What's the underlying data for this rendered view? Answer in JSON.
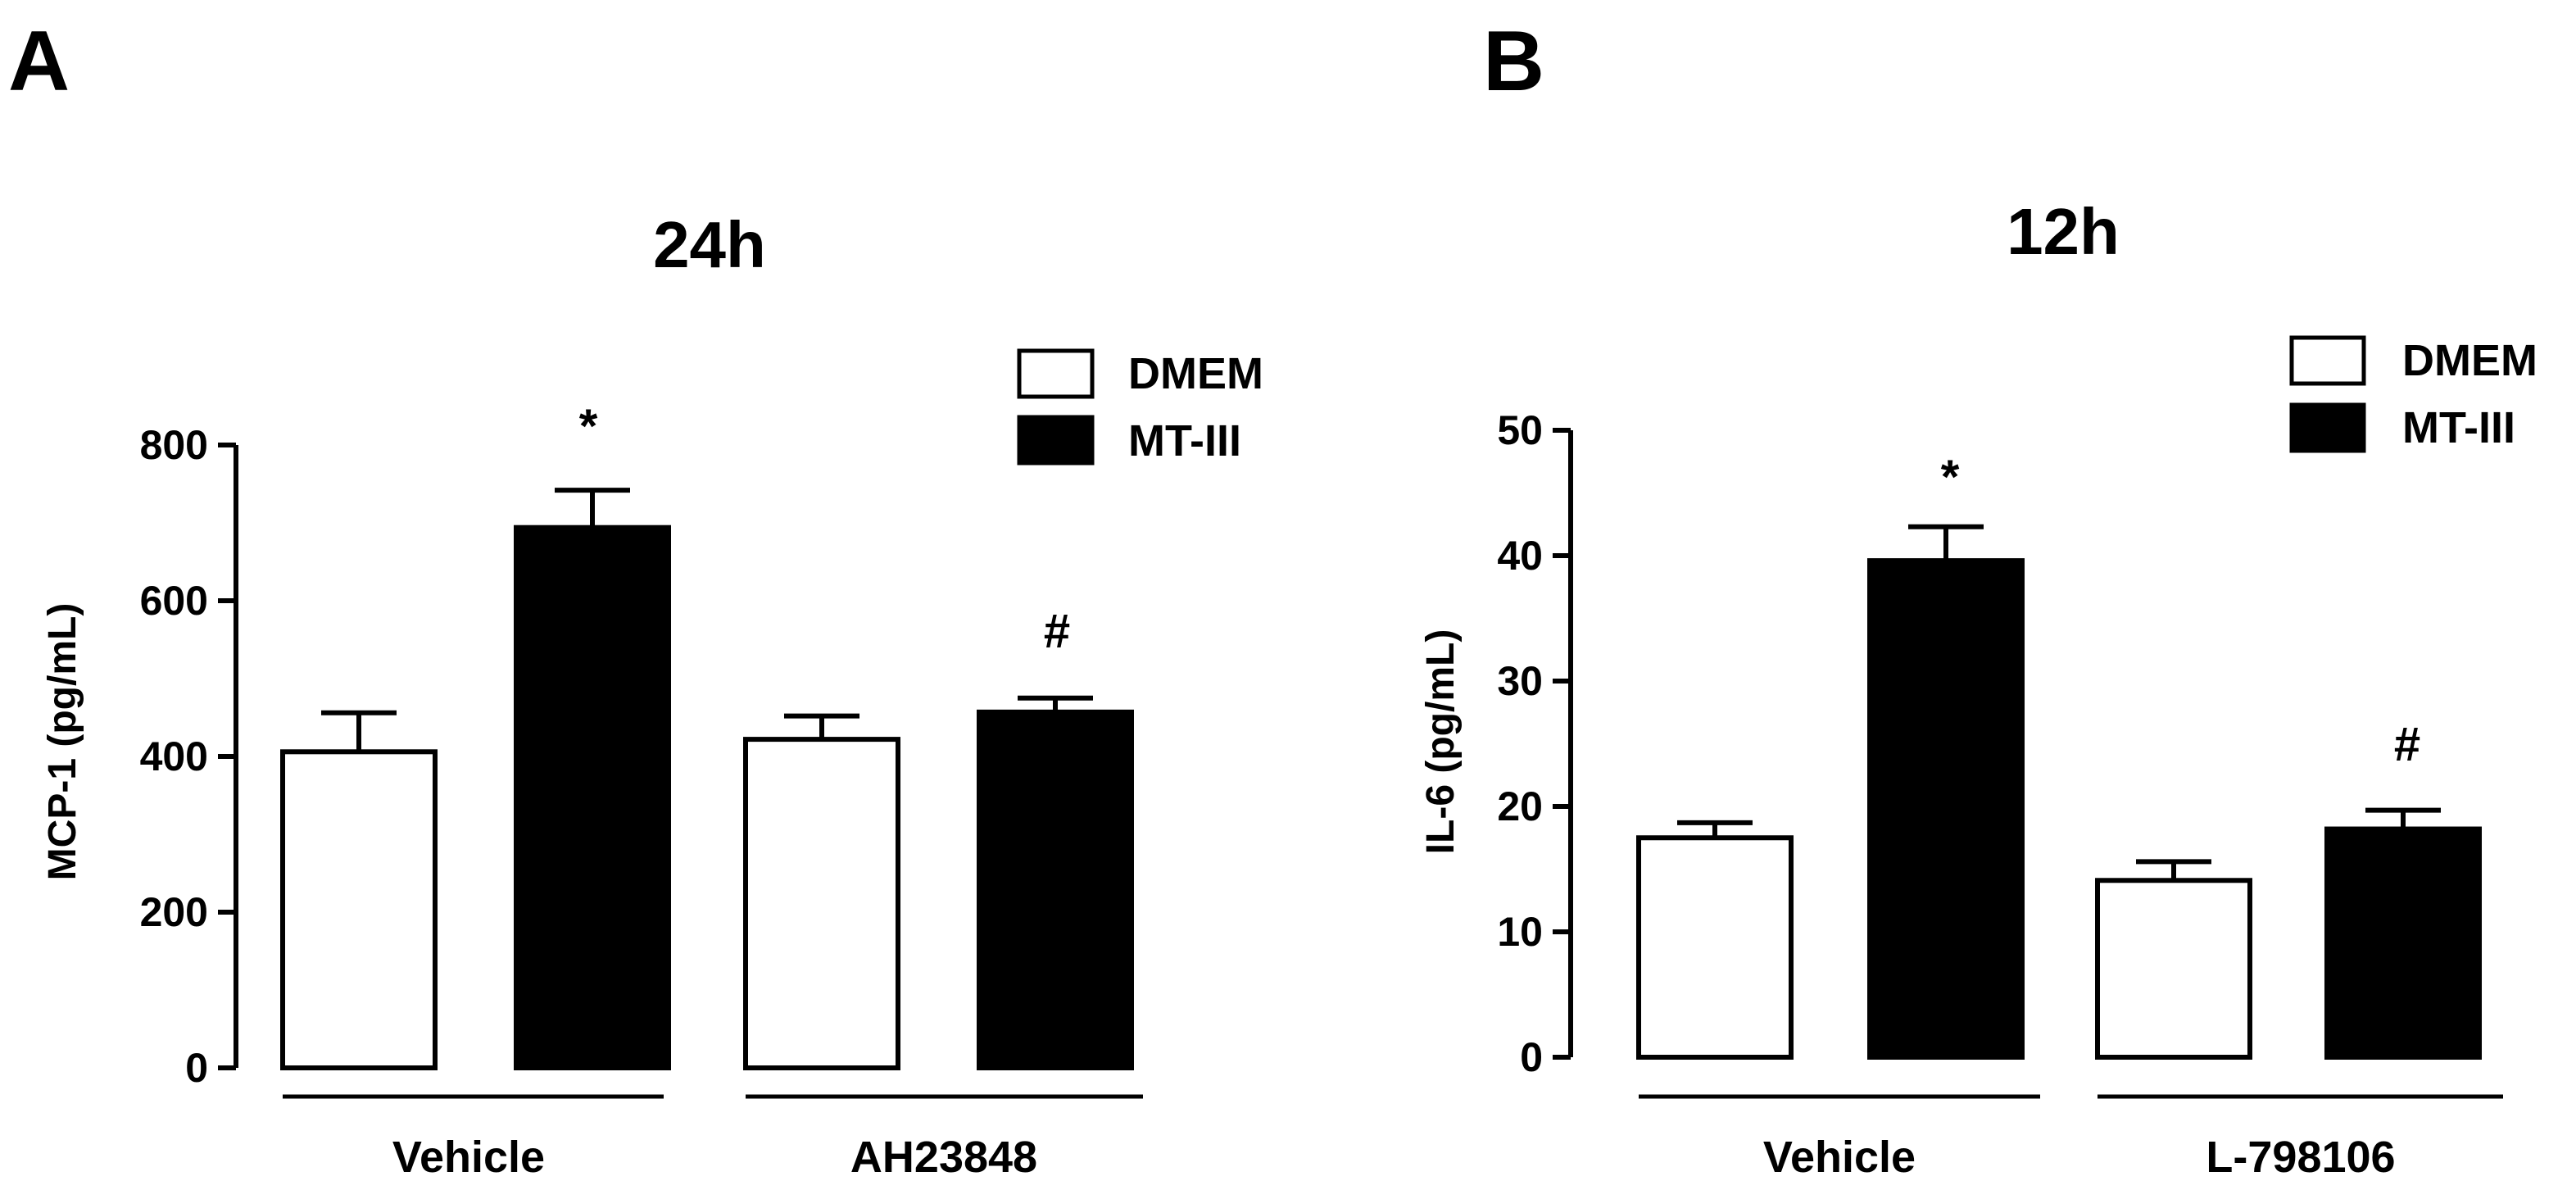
{
  "chart_data": [
    {
      "type": "bar",
      "panel": "A",
      "title": "24h",
      "ylabel": "MCP-1 (pg/mL)",
      "xlabel": "",
      "ylim": [
        0,
        800
      ],
      "yticks": [
        0,
        200,
        400,
        600,
        800
      ],
      "groups": [
        "Vehicle",
        "AH23848"
      ],
      "legend_position": "top-right",
      "series": [
        {
          "name": "DMEM",
          "color": "#ffffff",
          "values": [
            406,
            422
          ],
          "errors": [
            50,
            30
          ]
        },
        {
          "name": "MT-III",
          "color": "#000000",
          "values": [
            694,
            457
          ],
          "errors": [
            48,
            18
          ]
        }
      ],
      "annotations": [
        "*",
        "#"
      ]
    },
    {
      "type": "bar",
      "panel": "B",
      "title": "12h",
      "ylabel": "IL-6 (pg/mL)",
      "xlabel": "",
      "ylim": [
        0,
        50
      ],
      "yticks": [
        0,
        10,
        20,
        30,
        40,
        50
      ],
      "groups": [
        "Vehicle",
        "L-798106"
      ],
      "legend_position": "top-right",
      "series": [
        {
          "name": "DMEM",
          "color": "#ffffff",
          "values": [
            17.5,
            14.1
          ],
          "errors": [
            1.2,
            1.5
          ]
        },
        {
          "name": "MT-III",
          "color": "#000000",
          "values": [
            39.6,
            18.2
          ],
          "errors": [
            2.7,
            1.5
          ]
        }
      ],
      "annotations": [
        "*",
        "#"
      ]
    }
  ]
}
